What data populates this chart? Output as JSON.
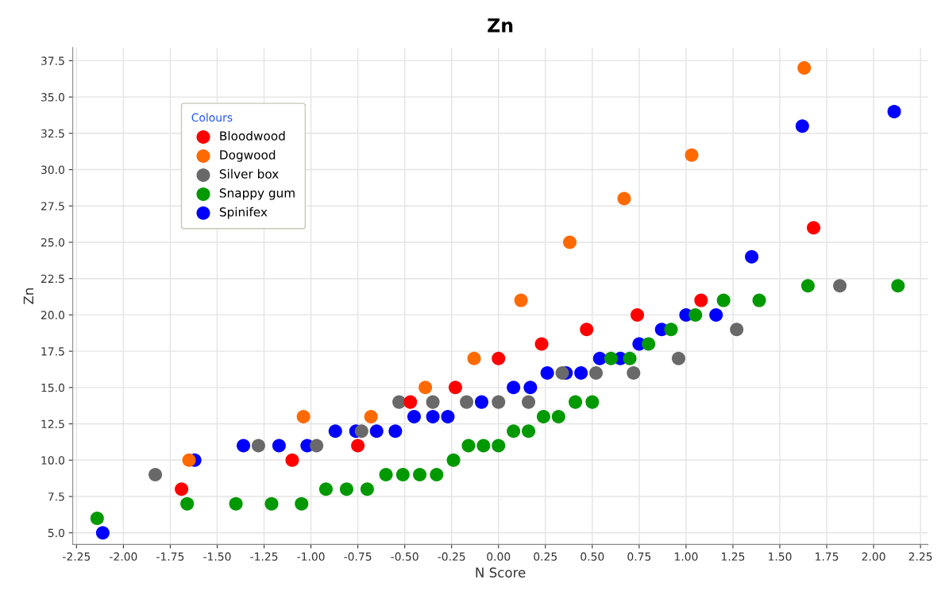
{
  "chart_data": {
    "type": "scatter",
    "title": "Zn",
    "xlabel": "N Score",
    "ylabel": "Zn",
    "legend_title": "Colours",
    "legend": "top left",
    "grid": true,
    "marker": "circle",
    "xlim": [
      -2.27,
      2.29
    ],
    "ylim": [
      4.2,
      38.4
    ],
    "xticks": [
      -2.25,
      {
        "value": -2.0,
        "label": "-2.00"
      },
      -1.75,
      {
        "value": -1.5,
        "label": "-1.50"
      },
      -1.25,
      {
        "value": -1.0,
        "label": "-1.00"
      },
      -0.75,
      {
        "value": -0.5,
        "label": "-0.50"
      },
      -0.25,
      {
        "value": 0,
        "label": "0.00"
      },
      0.25,
      {
        "value": 0.5,
        "label": "0.50"
      },
      0.75,
      {
        "value": 1.0,
        "label": "1.00"
      },
      1.25,
      {
        "value": 1.5,
        "label": "1.50"
      },
      1.75,
      {
        "value": 2.0,
        "label": "2.00"
      },
      2.25
    ],
    "yticks": [
      {
        "value": 5,
        "label": "5.0"
      },
      7.5,
      {
        "value": 10,
        "label": "10.0"
      },
      12.5,
      {
        "value": 15,
        "label": "15.0"
      },
      17.5,
      {
        "value": 20,
        "label": "20.0"
      },
      22.5,
      {
        "value": 25,
        "label": "25.0"
      },
      27.5,
      {
        "value": 30,
        "label": "30.0"
      },
      32.5,
      {
        "value": 35,
        "label": "35.0"
      },
      37.5
    ],
    "series": [
      {
        "name": "Bloodwood",
        "color": "#ff0000",
        "x": [
          -1.69,
          -1.1,
          -0.75,
          -0.47,
          -0.23,
          0.0,
          0.23,
          0.47,
          0.74,
          1.08,
          1.68
        ],
        "values": [
          8,
          10,
          11,
          14,
          15,
          17,
          18,
          19,
          20,
          21,
          26
        ]
      },
      {
        "name": "Dogwood",
        "color": "#ff6a00",
        "x": [
          -1.65,
          -1.04,
          -0.68,
          -0.39,
          -0.13,
          0.12,
          0.38,
          0.67,
          1.03,
          1.63
        ],
        "values": [
          10,
          13,
          13,
          15,
          17,
          21,
          25,
          28,
          31,
          37
        ]
      },
      {
        "name": "Silver box",
        "color": "#696969",
        "x": [
          -1.83,
          -1.28,
          -0.97,
          -0.73,
          -0.53,
          -0.35,
          -0.17,
          0.0,
          0.16,
          0.34,
          0.52,
          0.72,
          0.96,
          1.27,
          1.82
        ],
        "values": [
          9,
          11,
          11,
          12,
          14,
          14,
          14,
          14,
          14,
          16,
          16,
          16,
          17,
          19,
          22
        ]
      },
      {
        "name": "Snappy gum",
        "color": "#009900",
        "x": [
          -2.14,
          -1.66,
          -1.4,
          -1.21,
          -1.05,
          -0.92,
          -0.81,
          -0.7,
          -0.6,
          -0.51,
          -0.42,
          -0.33,
          -0.24,
          -0.16,
          -0.08,
          0.0,
          0.08,
          0.16,
          0.24,
          0.32,
          0.41,
          0.5,
          0.6,
          0.7,
          0.8,
          0.92,
          1.05,
          1.2,
          1.39,
          1.65,
          2.13
        ],
        "values": [
          6,
          7,
          7,
          7,
          7,
          8,
          8,
          8,
          9,
          9,
          9,
          9,
          10,
          11,
          11,
          11,
          12,
          12,
          13,
          13,
          14,
          14,
          17,
          17,
          18,
          19,
          20,
          21,
          21,
          22,
          22
        ]
      },
      {
        "name": "Spinifex",
        "color": "#0000ff",
        "x": [
          -2.11,
          -1.62,
          -1.36,
          -1.17,
          -1.02,
          -0.87,
          -0.76,
          -0.65,
          -0.55,
          -0.45,
          -0.35,
          -0.27,
          -0.09,
          0.08,
          0.17,
          0.26,
          0.36,
          0.44,
          0.54,
          0.65,
          0.75,
          0.87,
          1.0,
          1.16,
          1.35,
          1.62,
          2.11
        ],
        "values": [
          5,
          10,
          11,
          11,
          11,
          12,
          12,
          12,
          12,
          13,
          13,
          13,
          14,
          15,
          15,
          16,
          16,
          16,
          17,
          17,
          18,
          19,
          20,
          20,
          24,
          33,
          34
        ]
      }
    ]
  }
}
